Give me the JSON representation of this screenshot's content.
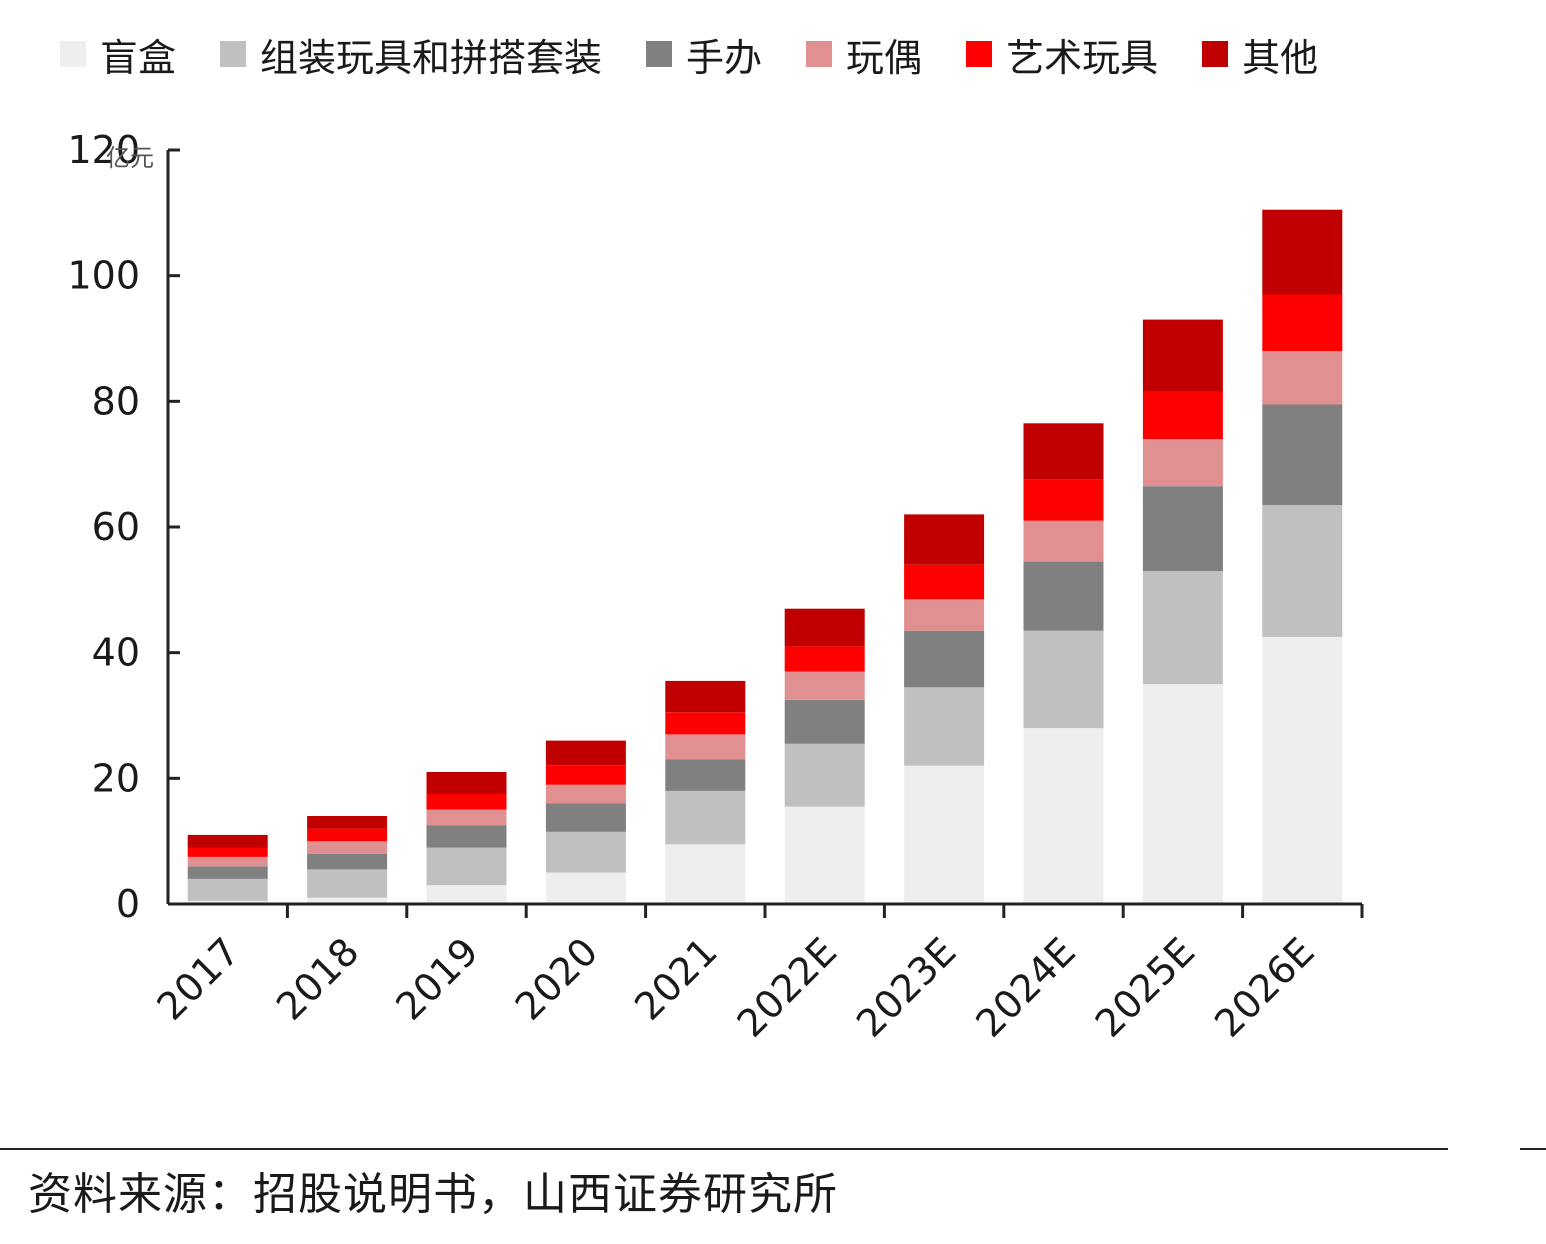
{
  "chart_data": {
    "type": "bar",
    "stacked": true,
    "unit": "亿元",
    "categories": [
      "2017",
      "2018",
      "2019",
      "2020",
      "2021",
      "2022E",
      "2023E",
      "2024E",
      "2025E",
      "2026E"
    ],
    "series": [
      {
        "name": "盲盒",
        "color": "#eeeeee",
        "values": [
          0.5,
          1,
          3,
          5,
          9.5,
          15.5,
          22,
          28,
          35,
          42.5
        ]
      },
      {
        "name": "组装玩具和拼搭套装",
        "color": "#c0c0c0",
        "values": [
          3.5,
          4.5,
          6,
          6.5,
          8.5,
          10,
          12.5,
          15.5,
          18,
          21
        ]
      },
      {
        "name": "手办",
        "color": "#808080",
        "values": [
          2,
          2.5,
          3.5,
          4.5,
          5,
          7,
          9,
          11,
          13.5,
          16
        ]
      },
      {
        "name": "玩偶",
        "color": "#e09090",
        "values": [
          1.5,
          2,
          2.5,
          3,
          4,
          4.5,
          5,
          6.5,
          7.5,
          8.5
        ]
      },
      {
        "name": "艺术玩具",
        "color": "#ff0000",
        "values": [
          1.5,
          2,
          2.5,
          3,
          3.5,
          4,
          5.5,
          6.5,
          7.5,
          9
        ]
      },
      {
        "name": "其他",
        "color": "#c00000",
        "values": [
          2,
          2,
          3.5,
          4,
          5,
          6,
          8,
          9,
          11.5,
          13.5
        ]
      }
    ],
    "ylim": [
      0,
      120
    ],
    "yticks": [
      0,
      20,
      40,
      60,
      80,
      100,
      120
    ],
    "grid": false,
    "legend_position": "top"
  },
  "source_text": "资料来源：招股说明书，山西证券研究所"
}
